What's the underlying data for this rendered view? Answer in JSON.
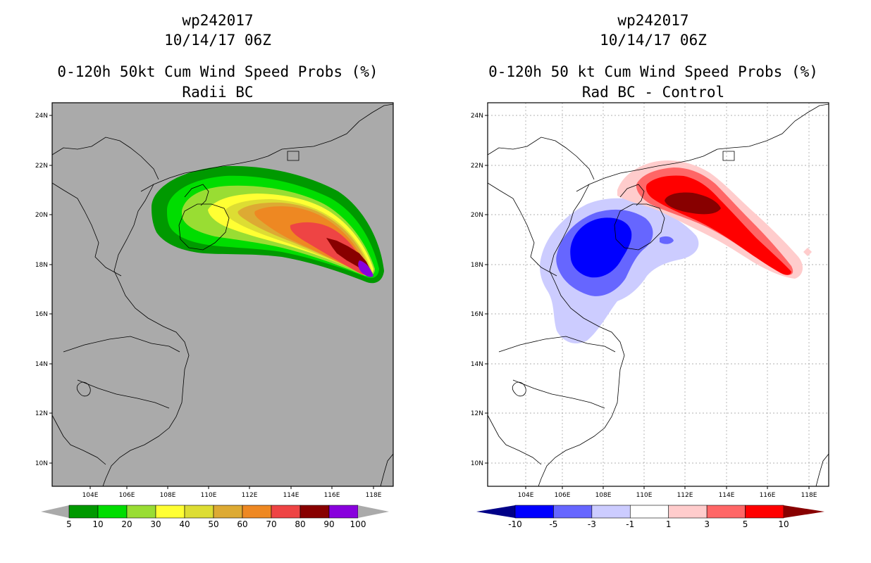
{
  "panels": [
    {
      "title_line1": "wp242017",
      "title_line2": "10/14/17 06Z",
      "title_line3": "0-120h 50kt Cum Wind Speed Probs (%)",
      "title_line4": "Radii BC",
      "lat_labels": [
        "24N",
        "22N",
        "20N",
        "18N",
        "16N",
        "14N",
        "12N",
        "10N"
      ],
      "lon_labels": [
        "104E",
        "106E",
        "108E",
        "110E",
        "112E",
        "114E",
        "116E",
        "118E"
      ],
      "colorbar": {
        "labels": [
          "5",
          "10",
          "20",
          "30",
          "40",
          "50",
          "60",
          "70",
          "80",
          "90",
          "100"
        ],
        "colors": [
          "#009900",
          "#00dd00",
          "#99dd33",
          "#ffff33",
          "#dddd33",
          "#ddaa33",
          "#ee8822",
          "#ee4444",
          "#880000",
          "#8800dd"
        ],
        "below_color": "#aaaaaa",
        "above_color": "#aaaaaa"
      },
      "map_background": "#aaaaaa"
    },
    {
      "title_line1": "wp242017",
      "title_line2": "10/14/17 06Z",
      "title_line3": "0-120h 50 kt Cum Wind Speed Probs (%)",
      "title_line4": "Rad BC - Control",
      "lat_labels": [
        "24N",
        "22N",
        "20N",
        "18N",
        "16N",
        "14N",
        "12N",
        "10N"
      ],
      "lon_labels": [
        "104E",
        "106E",
        "108E",
        "110E",
        "112E",
        "114E",
        "116E",
        "118E"
      ],
      "colorbar": {
        "labels": [
          "-10",
          "-5",
          "-3",
          "-1",
          "1",
          "3",
          "5",
          "10"
        ],
        "colors": [
          "#0000ff",
          "#6666ff",
          "#ccccff",
          "#ffffff",
          "#ffcccc",
          "#ff6666",
          "#ff0000"
        ],
        "below_color": "#000088",
        "above_color": "#880000"
      },
      "map_background": "#ffffff"
    }
  ]
}
